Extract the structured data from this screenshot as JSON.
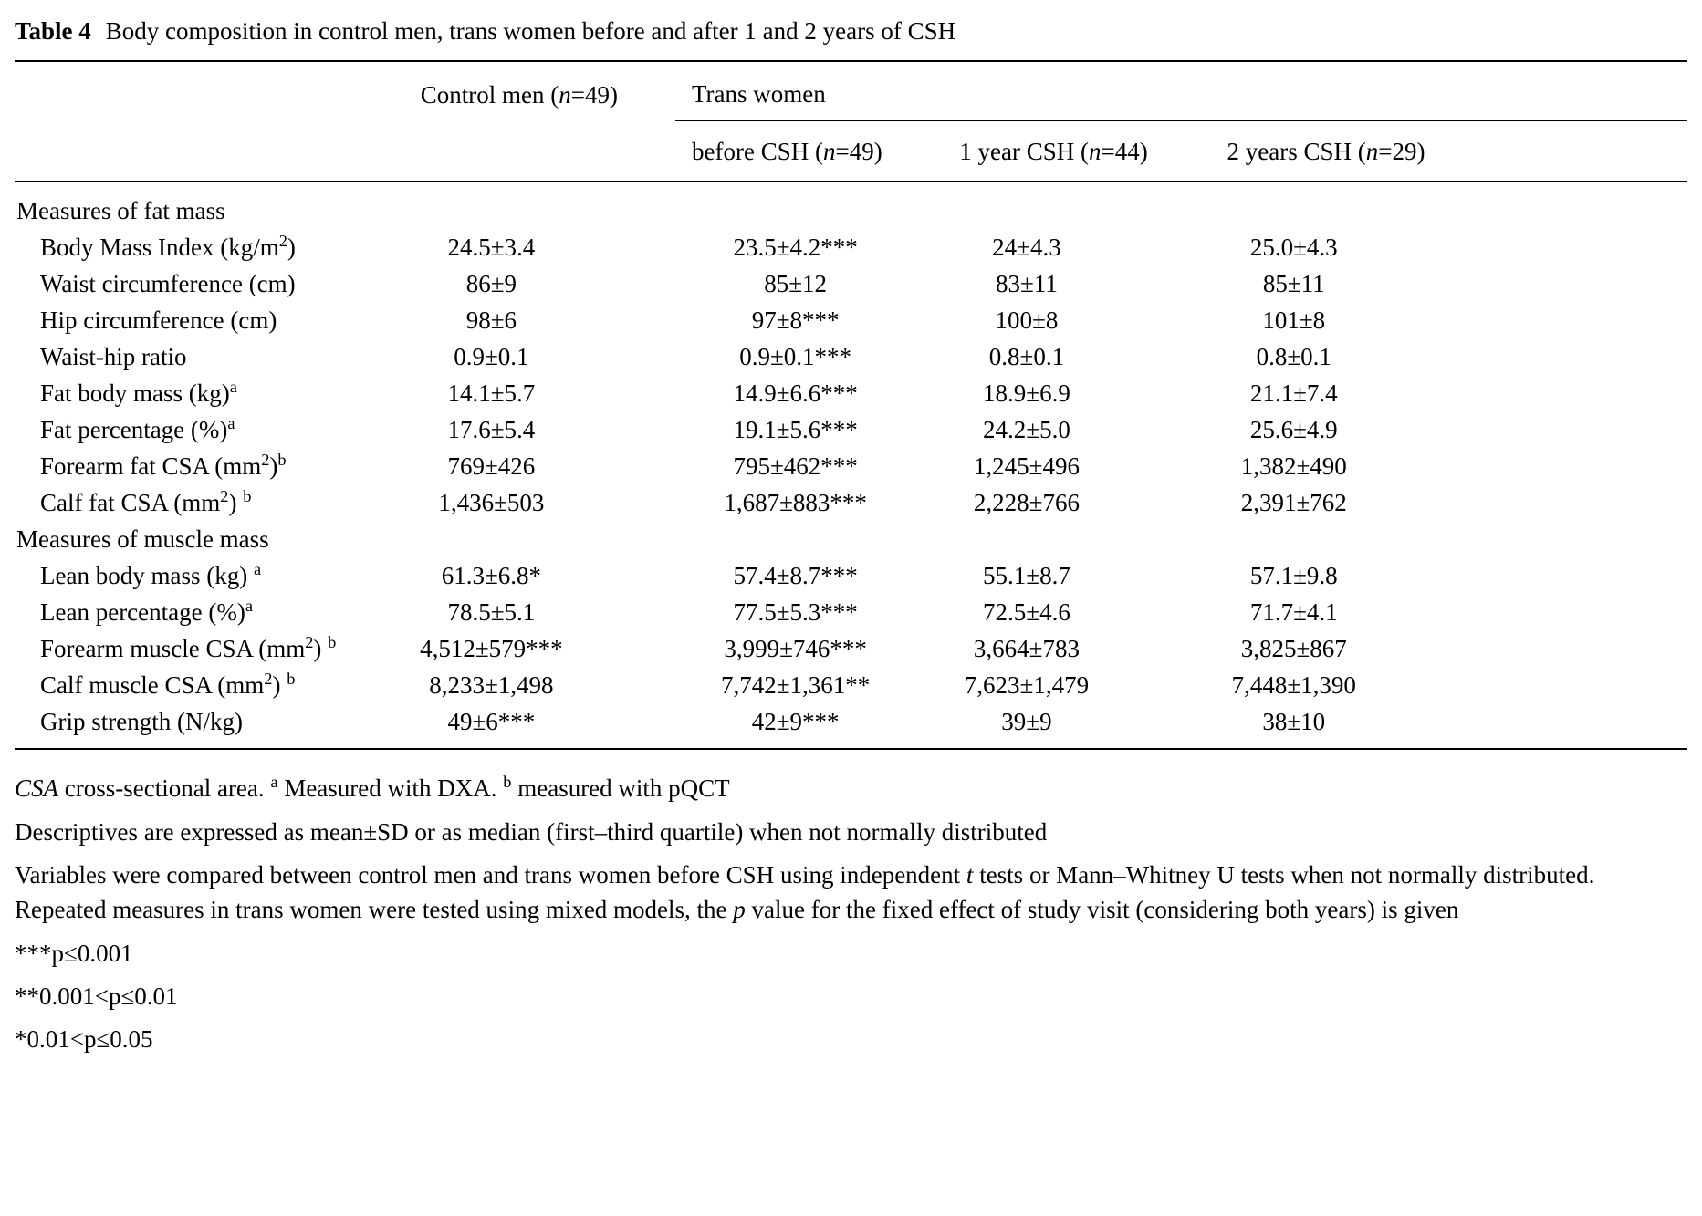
{
  "title": {
    "label": "Table 4",
    "text": "Body composition in control men, trans women before and after 1 and 2 years of CSH"
  },
  "table": {
    "headers": {
      "control": "Control men (<i>n</i>=49)",
      "group": "Trans women",
      "sub": [
        "before CSH (<i>n</i>=49)",
        "1 year CSH (<i>n</i>=44)",
        "2 years CSH (<i>n</i>=29)"
      ]
    },
    "rows": [
      {
        "type": "section",
        "label": "Measures of fat mass"
      },
      {
        "type": "data",
        "label": "Body Mass Index (kg/m<sup>2</sup>)",
        "values": [
          "24.5±3.4",
          "23.5±4.2***",
          "24±4.3",
          "25.0±4.3"
        ]
      },
      {
        "type": "data",
        "label": "Waist circumference (cm)",
        "values": [
          "86±9",
          "85±12",
          "83±11",
          "85±11"
        ]
      },
      {
        "type": "data",
        "label": "Hip circumference (cm)",
        "values": [
          "98±6",
          "97±8***",
          "100±8",
          "101±8"
        ]
      },
      {
        "type": "data",
        "label": "Waist-hip ratio",
        "values": [
          "0.9±0.1",
          "0.9±0.1***",
          "0.8±0.1",
          "0.8±0.1"
        ]
      },
      {
        "type": "data",
        "label": "Fat body mass (kg)<sup>a</sup>",
        "values": [
          "14.1±5.7",
          "14.9±6.6***",
          "18.9±6.9",
          "21.1±7.4"
        ]
      },
      {
        "type": "data",
        "label": "Fat percentage (%)<sup>a</sup>",
        "values": [
          "17.6±5.4",
          "19.1±5.6***",
          "24.2±5.0",
          "25.6±4.9"
        ]
      },
      {
        "type": "data",
        "label": "Forearm fat CSA (mm<sup>2</sup>)<sup>b</sup>",
        "values": [
          "769±426",
          "795±462***",
          "1,245±496",
          "1,382±490"
        ]
      },
      {
        "type": "data",
        "label": "Calf fat CSA (mm<sup>2</sup>) <sup>b</sup>",
        "values": [
          "1,436±503",
          "1,687±883***",
          "2,228±766",
          "2,391±762"
        ]
      },
      {
        "type": "section",
        "label": "Measures of muscle mass"
      },
      {
        "type": "data",
        "label": "Lean body mass (kg) <sup>a</sup>",
        "values": [
          "61.3±6.8*",
          "57.4±8.7***",
          "55.1±8.7",
          "57.1±9.8"
        ]
      },
      {
        "type": "data",
        "label": "Lean percentage (%)<sup>a</sup>",
        "values": [
          "78.5±5.1",
          "77.5±5.3***",
          "72.5±4.6",
          "71.7±4.1"
        ]
      },
      {
        "type": "data",
        "label": "Forearm muscle CSA (mm<sup>2</sup>) <sup>b</sup>",
        "values": [
          "4,512±579***",
          "3,999±746***",
          "3,664±783",
          "3,825±867"
        ]
      },
      {
        "type": "data",
        "label": "Calf muscle CSA (mm<sup>2</sup>) <sup>b</sup>",
        "values": [
          "8,233±1,498",
          "7,742±1,361**",
          "7,623±1,479",
          "7,448±1,390"
        ]
      },
      {
        "type": "data",
        "label": "Grip strength (N/kg)",
        "values": [
          "49±6***",
          "42±9***",
          "39±9",
          "38±10"
        ]
      }
    ]
  },
  "footnotes": [
    "<i>CSA</i> cross-sectional area. <sup>a</sup> Measured with DXA. <sup>b</sup> measured with pQCT",
    "Descriptives are expressed as mean±SD or as median (first–third quartile) when not normally distributed",
    "Variables were compared between control men and trans women before CSH using independent <i>t</i> tests or Mann–Whitney U tests when not normally distributed. Repeated measures in trans women were tested using mixed models, the <i>p</i> value for the fixed effect of study visit (considering both years) is given",
    "***p≤0.001",
    "**0.001<p≤0.01",
    "*0.01<p≤0.05"
  ]
}
